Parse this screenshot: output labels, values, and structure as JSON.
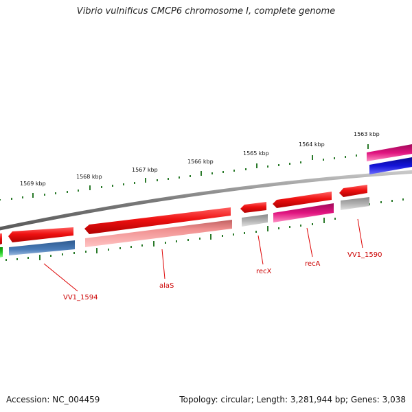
{
  "title": "Vibrio vulnificus CMCP6 chromosome I, complete genome",
  "footer": {
    "accession": "Accession: NC_004459",
    "summary": "Topology: circular; Length: 3,281,944 bp; Genes: 3,038"
  },
  "scale_labels": [
    "1569 kbp",
    "1568 kbp",
    "1567 kbp",
    "1566 kbp",
    "1565 kbp",
    "1564 kbp",
    "1563 kbp"
  ],
  "gene_labels": [
    "VV1_1594",
    "alaS",
    "recX",
    "recA",
    "VV1_1590"
  ],
  "colors": {
    "backbone": "#7a7a7a",
    "ticks": "#2a7a2a",
    "gene_forward": "#e8121c",
    "label": "#cc0000",
    "pink_light": "#f08a8a",
    "steel_blue": "#3f6fa8",
    "grey": "#a8a8a8",
    "magenta": "#e0147f",
    "blue": "#1414d8",
    "green": "#22c822"
  }
}
